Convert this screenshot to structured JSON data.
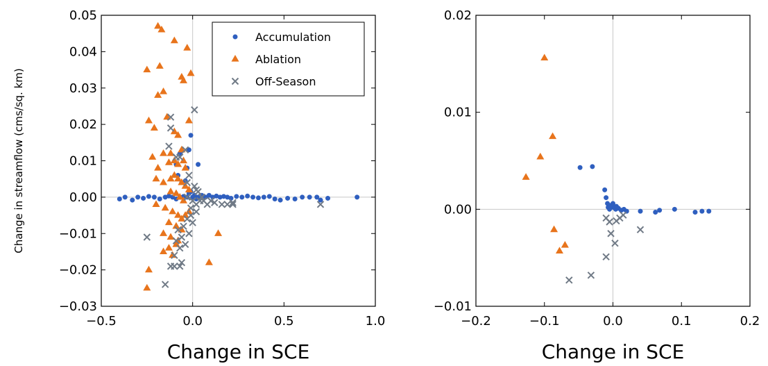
{
  "colors": {
    "accumulation": "#2f5fbf",
    "ablation": "#e8741c",
    "off_season": "#707a86",
    "zero_line": "#c8c8c8",
    "axes": "#000000"
  },
  "chart_data": [
    {
      "type": "scatter",
      "xlabel": "Change in SCE",
      "ylabel": "Change in streamflow (cms/sq. km)",
      "xlim": [
        -0.5,
        1.0
      ],
      "ylim": [
        -0.03,
        0.05
      ],
      "x_ticks": [
        "−0.5",
        "0.0",
        "0.5",
        "1.0"
      ],
      "y_ticks": [
        "0.05",
        "0.04",
        "0.03",
        "0.02",
        "0.01",
        "0.00",
        "−0.01",
        "−0.02",
        "−0.03"
      ],
      "legend": {
        "placement": "top-right",
        "entries": [
          "Accumulation",
          "Ablation",
          "Off-Season"
        ]
      },
      "series": [
        {
          "name": "Accumulation",
          "marker": "circle",
          "points": [
            [
              -0.4,
              -0.0005
            ],
            [
              -0.37,
              0.0
            ],
            [
              -0.33,
              -0.0008
            ],
            [
              -0.3,
              0.0
            ],
            [
              -0.27,
              -0.0003
            ],
            [
              -0.24,
              0.0002
            ],
            [
              -0.21,
              0.0
            ],
            [
              -0.18,
              -0.0005
            ],
            [
              -0.15,
              0.0
            ],
            [
              -0.13,
              0.0003
            ],
            [
              -0.11,
              0.0
            ],
            [
              -0.09,
              -0.0005
            ],
            [
              -0.07,
              0.0
            ],
            [
              -0.05,
              0.0002
            ],
            [
              -0.03,
              0.0
            ],
            [
              -0.02,
              0.001
            ],
            [
              -0.01,
              0.0015
            ],
            [
              0.0,
              0.0
            ],
            [
              0.01,
              0.0005
            ],
            [
              0.02,
              -0.0005
            ],
            [
              0.03,
              0.0
            ],
            [
              0.05,
              0.0005
            ],
            [
              0.07,
              0.0
            ],
            [
              0.09,
              0.0005
            ],
            [
              0.11,
              0.0
            ],
            [
              0.13,
              0.0003
            ],
            [
              0.15,
              0.0
            ],
            [
              0.17,
              0.0002
            ],
            [
              0.19,
              0.0
            ],
            [
              0.21,
              -0.0003
            ],
            [
              0.24,
              0.0002
            ],
            [
              0.27,
              0.0
            ],
            [
              0.3,
              0.0003
            ],
            [
              0.33,
              0.0
            ],
            [
              0.36,
              -0.0002
            ],
            [
              0.39,
              0.0
            ],
            [
              0.42,
              0.0002
            ],
            [
              0.45,
              -0.0005
            ],
            [
              0.48,
              -0.0008
            ],
            [
              0.52,
              -0.0003
            ],
            [
              0.56,
              -0.0005
            ],
            [
              0.6,
              0.0
            ],
            [
              0.64,
              0.0
            ],
            [
              0.68,
              0.0
            ],
            [
              0.7,
              -0.0008
            ],
            [
              0.74,
              -0.0003
            ],
            [
              0.9,
              0.0
            ],
            [
              -0.08,
              0.006
            ],
            [
              -0.09,
              0.009
            ],
            [
              -0.07,
              0.012
            ],
            [
              -0.03,
              0.008
            ],
            [
              -0.02,
              0.013
            ],
            [
              -0.01,
              0.017
            ],
            [
              0.03,
              0.009
            ],
            [
              -0.06,
              0.004
            ],
            [
              -0.04,
              0.0045
            ]
          ]
        },
        {
          "name": "Ablation",
          "marker": "triangle",
          "points": [
            [
              -0.19,
              0.047
            ],
            [
              -0.17,
              0.046
            ],
            [
              -0.1,
              0.043
            ],
            [
              -0.03,
              0.041
            ],
            [
              -0.25,
              0.035
            ],
            [
              -0.18,
              0.036
            ],
            [
              -0.06,
              0.033
            ],
            [
              -0.05,
              0.032
            ],
            [
              -0.01,
              0.034
            ],
            [
              -0.19,
              0.028
            ],
            [
              -0.16,
              0.029
            ],
            [
              -0.24,
              0.021
            ],
            [
              -0.21,
              0.019
            ],
            [
              -0.14,
              0.022
            ],
            [
              -0.02,
              0.021
            ],
            [
              -0.1,
              0.018
            ],
            [
              -0.08,
              0.017
            ],
            [
              -0.06,
              0.013
            ],
            [
              -0.22,
              0.011
            ],
            [
              -0.19,
              0.008
            ],
            [
              -0.16,
              0.012
            ],
            [
              -0.12,
              0.012
            ],
            [
              -0.1,
              0.01
            ],
            [
              -0.08,
              0.009
            ],
            [
              -0.05,
              0.01
            ],
            [
              -0.04,
              0.008
            ],
            [
              -0.2,
              0.005
            ],
            [
              -0.16,
              0.004
            ],
            [
              -0.12,
              0.005
            ],
            [
              -0.1,
              0.006
            ],
            [
              -0.08,
              0.005
            ],
            [
              -0.06,
              0.004
            ],
            [
              -0.04,
              0.003
            ],
            [
              -0.02,
              0.002
            ],
            [
              -0.12,
              0.0015
            ],
            [
              -0.09,
              0.001
            ],
            [
              -0.07,
              0.0
            ],
            [
              -0.05,
              -0.001
            ],
            [
              -0.2,
              -0.002
            ],
            [
              -0.15,
              -0.003
            ],
            [
              -0.11,
              -0.004
            ],
            [
              -0.08,
              -0.005
            ],
            [
              -0.06,
              -0.006
            ],
            [
              -0.04,
              -0.005
            ],
            [
              -0.02,
              -0.004
            ],
            [
              -0.13,
              -0.007
            ],
            [
              -0.09,
              -0.008
            ],
            [
              -0.06,
              -0.009
            ],
            [
              -0.16,
              -0.01
            ],
            [
              -0.12,
              -0.011
            ],
            [
              -0.08,
              -0.012
            ],
            [
              -0.13,
              -0.014
            ],
            [
              -0.09,
              -0.013
            ],
            [
              -0.16,
              -0.015
            ],
            [
              -0.11,
              -0.016
            ],
            [
              0.14,
              -0.01
            ],
            [
              0.09,
              -0.018
            ],
            [
              -0.24,
              -0.02
            ],
            [
              -0.25,
              -0.025
            ],
            [
              -0.13,
              0.0095
            ]
          ]
        },
        {
          "name": "Off-Season",
          "marker": "x",
          "points": [
            [
              0.01,
              0.024
            ],
            [
              -0.12,
              0.022
            ],
            [
              -0.12,
              0.019
            ],
            [
              -0.13,
              0.014
            ],
            [
              -0.04,
              0.013
            ],
            [
              -0.09,
              0.011
            ],
            [
              -0.07,
              0.011
            ],
            [
              -0.03,
              0.004
            ],
            [
              -0.02,
              0.006
            ],
            [
              0.01,
              0.003
            ],
            [
              0.02,
              0.002
            ],
            [
              0.03,
              0.0015
            ],
            [
              -0.03,
              0.0
            ],
            [
              0.0,
              -0.001
            ],
            [
              0.02,
              -0.002
            ],
            [
              0.04,
              -0.001
            ],
            [
              0.06,
              -0.001
            ],
            [
              0.08,
              -0.002
            ],
            [
              0.1,
              -0.001
            ],
            [
              0.12,
              -0.0015
            ],
            [
              0.16,
              -0.002
            ],
            [
              0.19,
              -0.002
            ],
            [
              0.22,
              -0.0015
            ],
            [
              0.02,
              -0.004
            ],
            [
              -0.01,
              -0.005
            ],
            [
              -0.03,
              -0.006
            ],
            [
              0.0,
              -0.007
            ],
            [
              -0.05,
              -0.008
            ],
            [
              -0.08,
              -0.009
            ],
            [
              -0.02,
              -0.01
            ],
            [
              -0.06,
              -0.011
            ],
            [
              -0.09,
              -0.012
            ],
            [
              -0.04,
              -0.013
            ],
            [
              -0.07,
              -0.014
            ],
            [
              -0.1,
              -0.016
            ],
            [
              -0.06,
              -0.018
            ],
            [
              -0.1,
              -0.019
            ],
            [
              -0.07,
              -0.019
            ],
            [
              -0.12,
              -0.019
            ],
            [
              -0.15,
              -0.024
            ],
            [
              -0.25,
              -0.011
            ],
            [
              0.7,
              -0.002
            ],
            [
              0.22,
              -0.002
            ],
            [
              0.05,
              0.0
            ],
            [
              -0.01,
              -0.003
            ]
          ]
        }
      ]
    },
    {
      "type": "scatter",
      "xlabel": "Change in SCE",
      "xlim": [
        -0.2,
        0.2
      ],
      "ylim": [
        -0.01,
        0.02
      ],
      "x_ticks": [
        "−0.2",
        "−0.1",
        "0.0",
        "0.1",
        "0.2"
      ],
      "y_ticks": [
        "0.02",
        "0.01",
        "0.00",
        "−0.01"
      ],
      "series": [
        {
          "name": "Accumulation",
          "marker": "circle",
          "points": [
            [
              -0.048,
              0.0043
            ],
            [
              -0.03,
              0.0044
            ],
            [
              -0.012,
              0.002
            ],
            [
              -0.01,
              0.0012
            ],
            [
              -0.008,
              0.0006
            ],
            [
              -0.007,
              0.0002
            ],
            [
              -0.005,
              0.0
            ],
            [
              0.0,
              0.0002
            ],
            [
              0.004,
              0.0
            ],
            [
              0.008,
              0.0001
            ],
            [
              0.012,
              -0.0001
            ],
            [
              0.016,
              0.0
            ],
            [
              0.02,
              -0.0002
            ],
            [
              0.04,
              -0.0002
            ],
            [
              0.062,
              -0.0003
            ],
            [
              0.068,
              -0.0001
            ],
            [
              0.09,
              0.0
            ],
            [
              0.12,
              -0.0003
            ],
            [
              0.13,
              -0.0002
            ],
            [
              0.14,
              -0.0002
            ],
            [
              0.0,
              0.0006
            ],
            [
              0.005,
              0.0003
            ],
            [
              -0.003,
              0.0004
            ]
          ]
        },
        {
          "name": "Ablation",
          "marker": "triangle",
          "points": [
            [
              -0.1,
              0.0156
            ],
            [
              -0.088,
              0.0075
            ],
            [
              -0.106,
              0.0054
            ],
            [
              -0.127,
              0.0033
            ],
            [
              -0.086,
              -0.0021
            ],
            [
              -0.07,
              -0.0037
            ],
            [
              -0.078,
              -0.0043
            ]
          ]
        },
        {
          "name": "Off-Season",
          "marker": "x",
          "points": [
            [
              -0.01,
              -0.0009
            ],
            [
              -0.005,
              -0.0013
            ],
            [
              0.005,
              -0.0012
            ],
            [
              0.01,
              -0.0009
            ],
            [
              0.015,
              -0.0006
            ],
            [
              -0.003,
              -0.0025
            ],
            [
              0.003,
              -0.0035
            ],
            [
              0.04,
              -0.0021
            ],
            [
              -0.01,
              -0.0049
            ],
            [
              -0.032,
              -0.0068
            ],
            [
              -0.064,
              -0.0073
            ]
          ]
        }
      ]
    }
  ]
}
